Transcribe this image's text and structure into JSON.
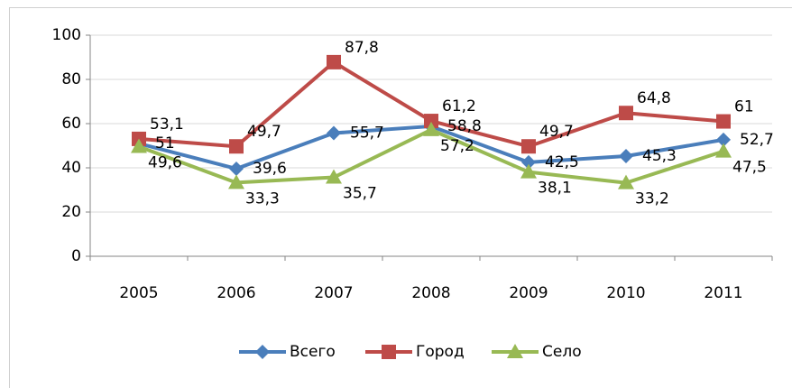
{
  "chart_data": {
    "type": "line",
    "categories": [
      "2005",
      "2006",
      "2007",
      "2008",
      "2009",
      "2010",
      "2011"
    ],
    "series": [
      {
        "name": "Всего",
        "color": "#4a7ebb",
        "marker": "diamond",
        "values": [
          51,
          39.6,
          55.7,
          58.8,
          42.5,
          45.3,
          52.7
        ],
        "value_labels": [
          "51",
          "39,6",
          "55,7",
          "58,8",
          "42,5",
          "45,3",
          "52,7"
        ]
      },
      {
        "name": "Город",
        "color": "#be4b48",
        "marker": "square",
        "values": [
          53.1,
          49.7,
          87.8,
          61.2,
          49.7,
          64.8,
          61
        ],
        "value_labels": [
          "53,1",
          "49,7",
          "87,8",
          "61,2",
          "49,7",
          "64,8",
          "61"
        ]
      },
      {
        "name": "Село",
        "color": "#98b954",
        "marker": "triangle",
        "values": [
          49.6,
          33.3,
          35.7,
          57.2,
          38.1,
          33.2,
          47.5
        ],
        "value_labels": [
          "49,6",
          "33,3",
          "35,7",
          "57,2",
          "38,1",
          "33,2",
          "47,5"
        ]
      }
    ],
    "ylim": [
      0,
      100
    ],
    "yticks": [
      0,
      20,
      40,
      60,
      80,
      100
    ],
    "grid": true,
    "legend": "bottom"
  }
}
